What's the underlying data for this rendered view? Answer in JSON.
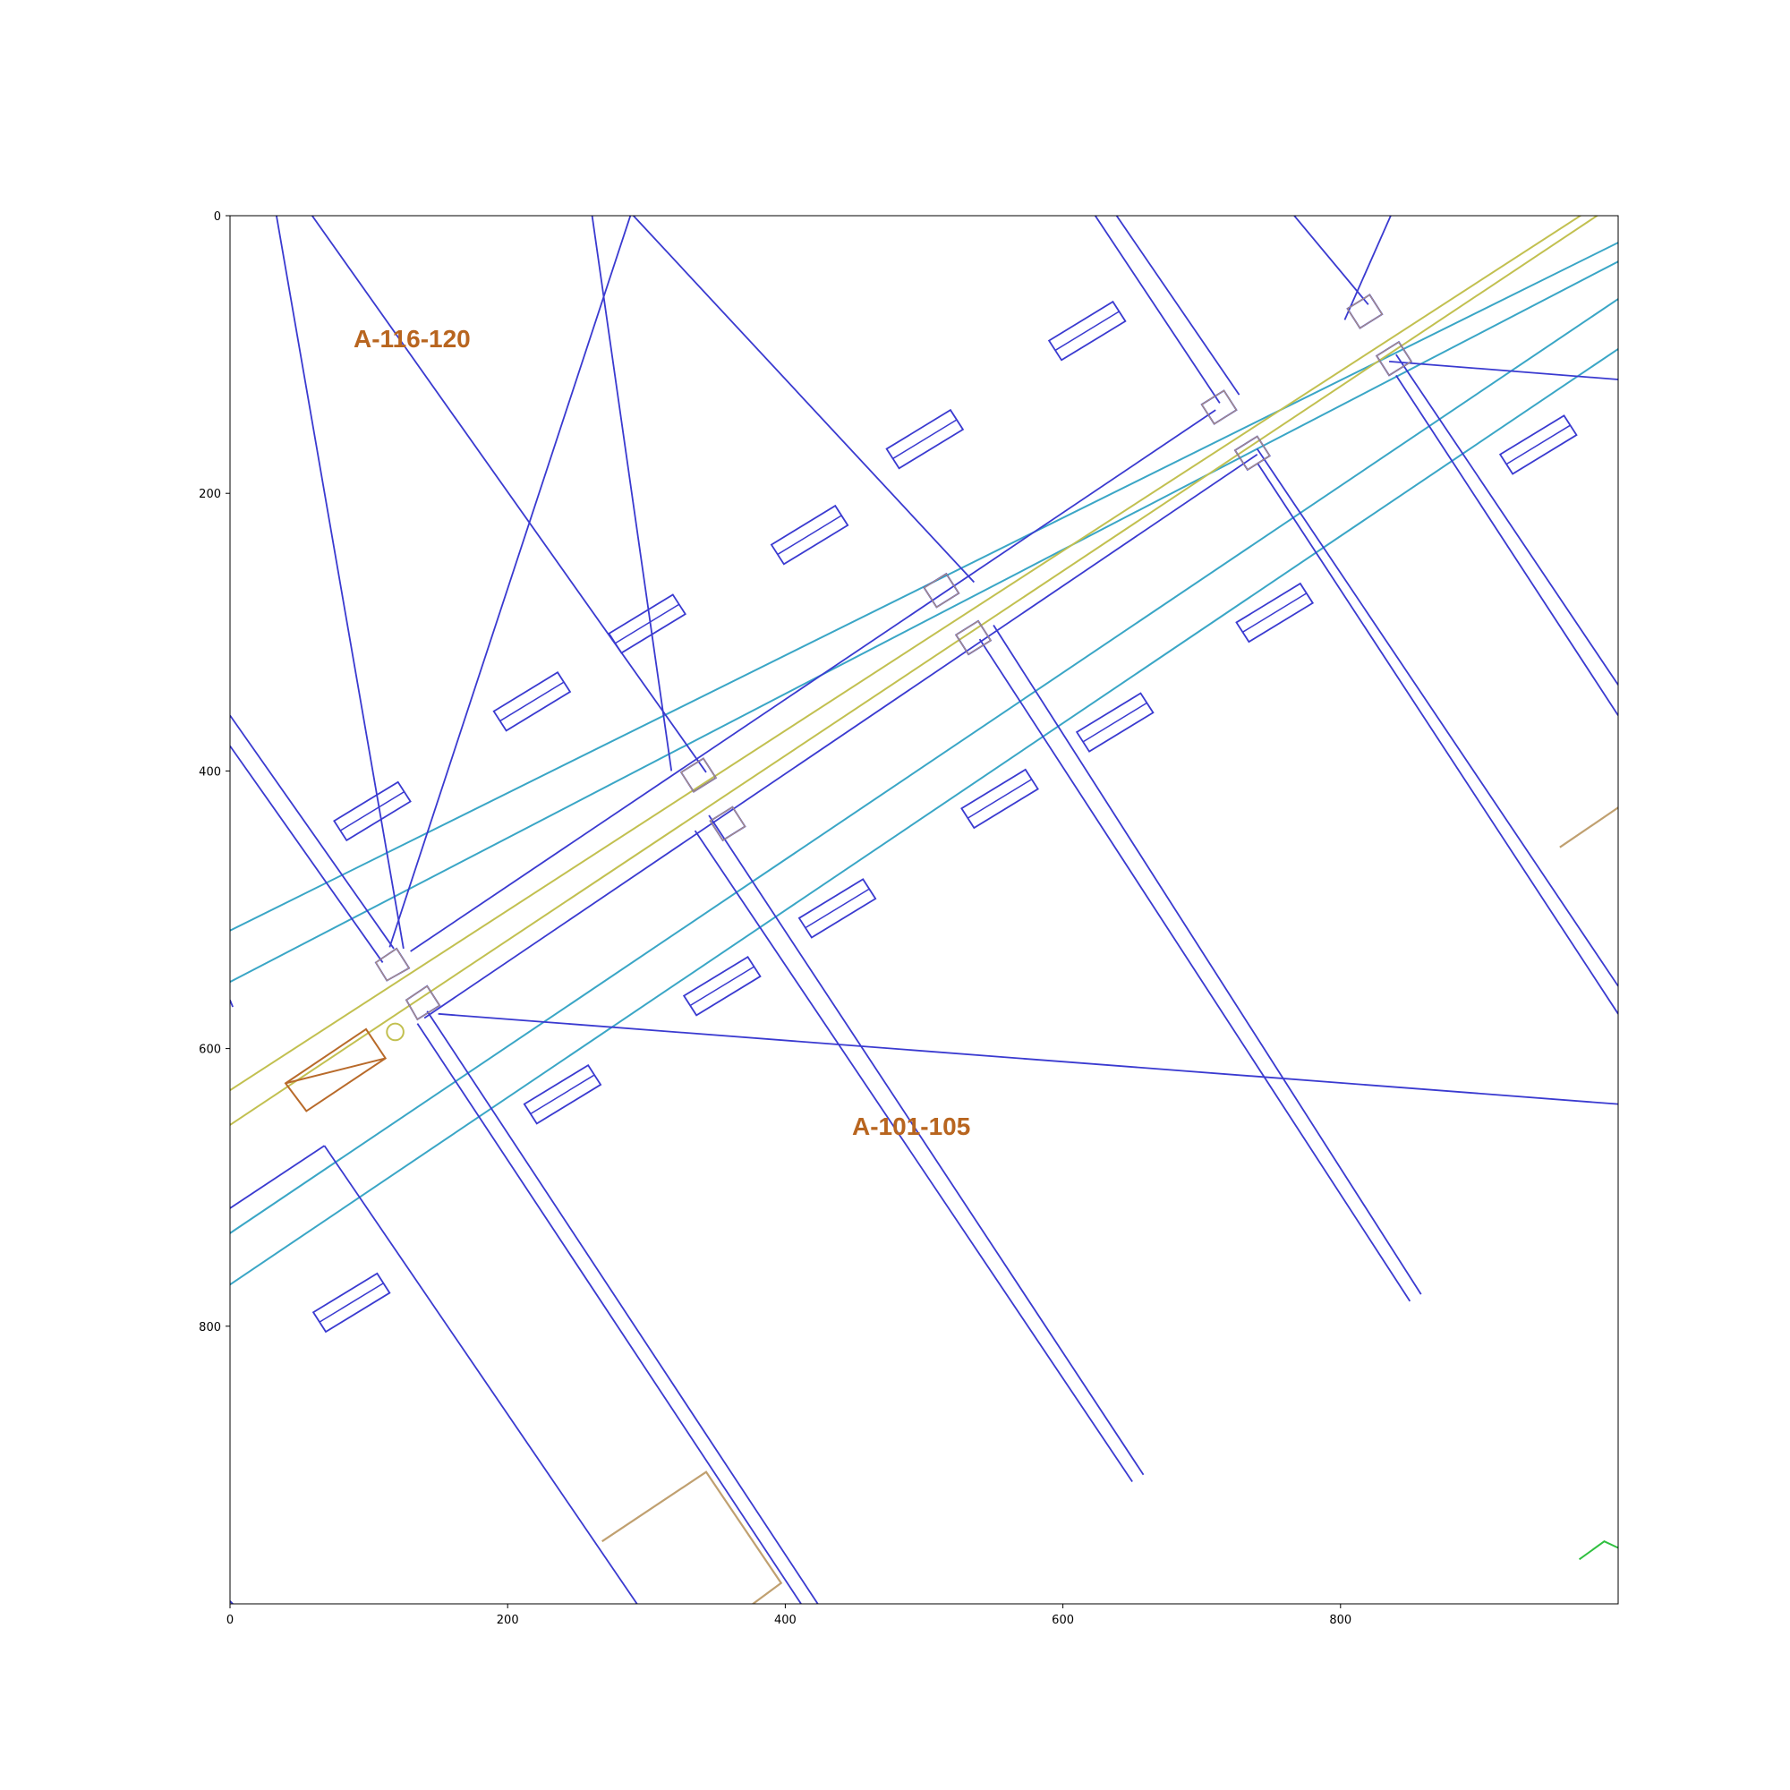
{
  "colors": {
    "cable": "#3a3ad0",
    "kerb": "#3aa6c6",
    "centerline": "#c2c050",
    "feature": "#c0a070",
    "feature_dark": "#b86a2a",
    "label": "#b8651f",
    "poly_green": "#30c040",
    "axis": "#000000"
  },
  "axes": {
    "x_range": [
      0,
      1000
    ],
    "y_range": [
      0,
      1000
    ],
    "y_inverted": true,
    "x_ticks": [
      "0",
      "200",
      "400",
      "600",
      "800"
    ],
    "y_ticks": [
      "0",
      "200",
      "400",
      "600",
      "800"
    ],
    "grid": false
  },
  "labels": {
    "parcel_a": "A-116-120",
    "parcel_b": "A-101-105"
  },
  "map_data": {
    "kerb_lines": [
      [
        [
          0,
          515
        ],
        [
          1140,
          -50
        ]
      ],
      [
        [
          0,
          552
        ],
        [
          1160,
          -50
        ]
      ],
      [
        [
          0,
          733
        ],
        [
          1000,
          60
        ]
      ],
      [
        [
          0,
          770
        ],
        [
          1000,
          96
        ]
      ]
    ],
    "centerlines": [
      [
        [
          0,
          630
        ],
        [
          1050,
          -50
        ]
      ],
      [
        [
          0,
          655
        ],
        [
          1060,
          -50
        ]
      ]
    ],
    "cable_lines": [
      [
        [
          30,
          -20
        ],
        [
          125,
          528
        ]
      ],
      [
        [
          45,
          -20
        ],
        [
          343,
          401
        ]
      ],
      [
        [
          258,
          -20
        ],
        [
          318,
          400
        ]
      ],
      [
        [
          272,
          -20
        ],
        [
          536,
          264
        ]
      ],
      [
        [
          610,
          -20
        ],
        [
          713,
          135
        ]
      ],
      [
        [
          625,
          -20
        ],
        [
          727,
          129
        ]
      ],
      [
        [
          750,
          -20
        ],
        [
          820,
          64
        ]
      ],
      [
        [
          0,
          360
        ],
        [
          118,
          528
        ]
      ],
      [
        [
          0,
          382
        ],
        [
          110,
          538
        ]
      ],
      [
        [
          130,
          530
        ],
        [
          710,
          140
        ]
      ],
      [
        [
          140,
          578
        ],
        [
          740,
          172
        ]
      ],
      [
        [
          840,
          100
        ],
        [
          1000,
          338
        ]
      ],
      [
        [
          840,
          115
        ],
        [
          1000,
          360
        ]
      ],
      [
        [
          740,
          168
        ],
        [
          1000,
          555
        ]
      ],
      [
        [
          740,
          178
        ],
        [
          1000,
          575
        ]
      ],
      [
        [
          550,
          295
        ],
        [
          858,
          777
        ]
      ],
      [
        [
          540,
          305
        ],
        [
          850,
          782
        ]
      ],
      [
        [
          345,
          432
        ],
        [
          658,
          907
        ]
      ],
      [
        [
          335,
          443
        ],
        [
          650,
          912
        ]
      ],
      [
        [
          142,
          573
        ],
        [
          430,
          1010
        ]
      ],
      [
        [
          135,
          582
        ],
        [
          418,
          1010
        ]
      ],
      [
        [
          0,
          715
        ],
        [
          68,
          670
        ]
      ],
      [
        [
          68,
          670
        ],
        [
          300,
          1010
        ]
      ],
      [
        [
          115,
          527
        ],
        [
          295,
          -20
        ]
      ],
      [
        [
          803,
          75
        ],
        [
          845,
          -20
        ]
      ],
      [
        [
          150,
          575
        ],
        [
          1000,
          640
        ]
      ],
      [
        [
          835,
          105
        ],
        [
          1000,
          118
        ]
      ],
      [
        [
          0,
          565
        ],
        [
          2,
          570
        ]
      ],
      [
        [
          0,
          998
        ],
        [
          2,
          1000
        ]
      ]
    ],
    "road_boxes": [
      [
        [
          105,
          538
        ],
        [
          120,
          528
        ],
        [
          129,
          542
        ],
        [
          113,
          551
        ]
      ],
      [
        [
          127,
          565
        ],
        [
          142,
          555
        ],
        [
          151,
          569
        ],
        [
          135,
          579
        ]
      ],
      [
        [
          325,
          401
        ],
        [
          341,
          391
        ],
        [
          350,
          405
        ],
        [
          334,
          415
        ]
      ],
      [
        [
          346,
          436
        ],
        [
          362,
          426
        ],
        [
          371,
          440
        ],
        [
          355,
          450
        ]
      ],
      [
        [
          500,
          268
        ],
        [
          516,
          258
        ],
        [
          525,
          272
        ],
        [
          509,
          282
        ]
      ],
      [
        [
          523,
          302
        ],
        [
          539,
          292
        ],
        [
          548,
          306
        ],
        [
          532,
          316
        ]
      ],
      [
        [
          700,
          136
        ],
        [
          716,
          126
        ],
        [
          725,
          140
        ],
        [
          709,
          150
        ]
      ],
      [
        [
          724,
          169
        ],
        [
          740,
          159
        ],
        [
          749,
          173
        ],
        [
          733,
          183
        ]
      ],
      [
        [
          805,
          67
        ],
        [
          821,
          57
        ],
        [
          830,
          71
        ],
        [
          814,
          81
        ]
      ],
      [
        [
          826,
          101
        ],
        [
          842,
          91
        ],
        [
          851,
          105
        ],
        [
          835,
          115
        ]
      ]
    ],
    "vehicles": [
      [
        [
          75,
          436
        ],
        [
          121,
          408
        ],
        [
          130,
          422
        ],
        [
          84,
          450
        ]
      ],
      [
        [
          190,
          357
        ],
        [
          236,
          329
        ],
        [
          245,
          343
        ],
        [
          199,
          371
        ]
      ],
      [
        [
          273,
          301
        ],
        [
          319,
          273
        ],
        [
          328,
          287
        ],
        [
          282,
          315
        ]
      ],
      [
        [
          390,
          237
        ],
        [
          436,
          209
        ],
        [
          445,
          223
        ],
        [
          399,
          251
        ]
      ],
      [
        [
          473,
          168
        ],
        [
          519,
          140
        ],
        [
          528,
          154
        ],
        [
          482,
          182
        ]
      ],
      [
        [
          590,
          90
        ],
        [
          636,
          62
        ],
        [
          645,
          76
        ],
        [
          599,
          104
        ]
      ],
      [
        [
          915,
          172
        ],
        [
          961,
          144
        ],
        [
          970,
          158
        ],
        [
          924,
          186
        ]
      ],
      [
        [
          725,
          293
        ],
        [
          771,
          265
        ],
        [
          780,
          279
        ],
        [
          734,
          307
        ]
      ],
      [
        [
          610,
          372
        ],
        [
          656,
          344
        ],
        [
          665,
          358
        ],
        [
          619,
          386
        ]
      ],
      [
        [
          527,
          427
        ],
        [
          573,
          399
        ],
        [
          582,
          413
        ],
        [
          536,
          441
        ]
      ],
      [
        [
          410,
          506
        ],
        [
          456,
          478
        ],
        [
          465,
          492
        ],
        [
          419,
          520
        ]
      ],
      [
        [
          327,
          562
        ],
        [
          373,
          534
        ],
        [
          382,
          548
        ],
        [
          336,
          576
        ]
      ],
      [
        [
          212,
          640
        ],
        [
          258,
          612
        ],
        [
          267,
          626
        ],
        [
          221,
          654
        ]
      ],
      [
        [
          60,
          790
        ],
        [
          106,
          762
        ],
        [
          115,
          776
        ],
        [
          69,
          804
        ]
      ]
    ],
    "feature_polys": [
      [
        [
          268,
          955
        ],
        [
          343,
          905
        ],
        [
          397,
          985
        ],
        [
          370,
          1005
        ],
        [
          295,
          1005
        ]
      ],
      [
        [
          958,
          455
        ],
        [
          1005,
          423
        ],
        [
          1005,
          520
        ]
      ]
    ],
    "feature_dark_polys": [
      [
        [
          40,
          625
        ],
        [
          98,
          586
        ],
        [
          112,
          607
        ],
        [
          55,
          645
        ]
      ]
    ],
    "feature_dark_lines": [
      [
        [
          40,
          625
        ],
        [
          112,
          607
        ]
      ]
    ],
    "green_polys": [
      [
        [
          972,
          968
        ],
        [
          990,
          955
        ],
        [
          1005,
          962
        ],
        [
          1005,
          985
        ]
      ]
    ],
    "circles": [
      {
        "x": 119,
        "y": 588,
        "r": 6
      }
    ]
  }
}
